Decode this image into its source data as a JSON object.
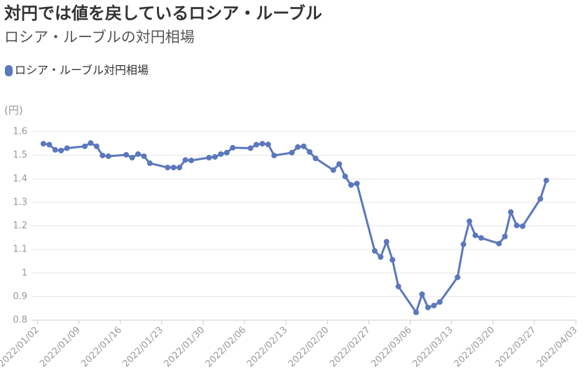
{
  "chart_data": {
    "type": "line",
    "title": "対円では値を戻しているロシア・ルーブル",
    "subtitle": "ロシア・ルーブルの対円相場",
    "y_label": "(円)",
    "legend": "top-left",
    "grid": true,
    "x": [
      "2022/01/03",
      "2022/01/04",
      "2022/01/05",
      "2022/01/06",
      "2022/01/07",
      "2022/01/10",
      "2022/01/11",
      "2022/01/12",
      "2022/01/13",
      "2022/01/14",
      "2022/01/17",
      "2022/01/18",
      "2022/01/19",
      "2022/01/20",
      "2022/01/21",
      "2022/01/24",
      "2022/01/25",
      "2022/01/26",
      "2022/01/27",
      "2022/01/28",
      "2022/01/31",
      "2022/02/01",
      "2022/02/02",
      "2022/02/03",
      "2022/02/04",
      "2022/02/07",
      "2022/02/08",
      "2022/02/09",
      "2022/02/10",
      "2022/02/11",
      "2022/02/14",
      "2022/02/15",
      "2022/02/16",
      "2022/02/17",
      "2022/02/18",
      "2022/02/21",
      "2022/02/22",
      "2022/02/23",
      "2022/02/24",
      "2022/02/25",
      "2022/02/28",
      "2022/03/01",
      "2022/03/02",
      "2022/03/03",
      "2022/03/04",
      "2022/03/07",
      "2022/03/08",
      "2022/03/09",
      "2022/03/10",
      "2022/03/11",
      "2022/03/14",
      "2022/03/15",
      "2022/03/16",
      "2022/03/17",
      "2022/03/18",
      "2022/03/21",
      "2022/03/22",
      "2022/03/23",
      "2022/03/24",
      "2022/03/25",
      "2022/03/28",
      "2022/03/29"
    ],
    "series": [
      {
        "name": "ロシア・ルーブル対円相場",
        "color": "#5b77bd",
        "values": [
          1.549,
          1.545,
          1.523,
          1.52,
          1.53,
          1.538,
          1.552,
          1.538,
          1.499,
          1.496,
          1.502,
          1.49,
          1.505,
          1.496,
          1.466,
          1.448,
          1.448,
          1.448,
          1.48,
          1.478,
          1.49,
          1.493,
          1.505,
          1.511,
          1.532,
          1.53,
          1.545,
          1.549,
          1.546,
          1.499,
          1.511,
          1.535,
          1.538,
          1.514,
          1.487,
          1.437,
          1.463,
          1.41,
          1.374,
          1.38,
          1.094,
          1.068,
          1.133,
          1.056,
          0.943,
          0.833,
          0.91,
          0.854,
          0.862,
          0.877,
          0.982,
          1.122,
          1.22,
          1.16,
          1.149,
          1.125,
          1.155,
          1.259,
          1.202,
          1.199,
          1.315,
          1.393
        ]
      }
    ],
    "xlim": [
      "2022/01/01",
      "2022/04/03"
    ],
    "xticks": [
      "2022/01/02",
      "2022/01/09",
      "2022/01/16",
      "2022/01/23",
      "2022/01/30",
      "2022/02/06",
      "2022/02/13",
      "2022/02/20",
      "2022/02/27",
      "2022/03/06",
      "2022/03/13",
      "2022/03/20",
      "2022/03/27",
      "2022/04/03"
    ],
    "ylim": [
      0.8,
      1.6
    ],
    "yticks": [
      0.8,
      0.9,
      1,
      1.1,
      1.2,
      1.3,
      1.4,
      1.5,
      1.6
    ]
  }
}
